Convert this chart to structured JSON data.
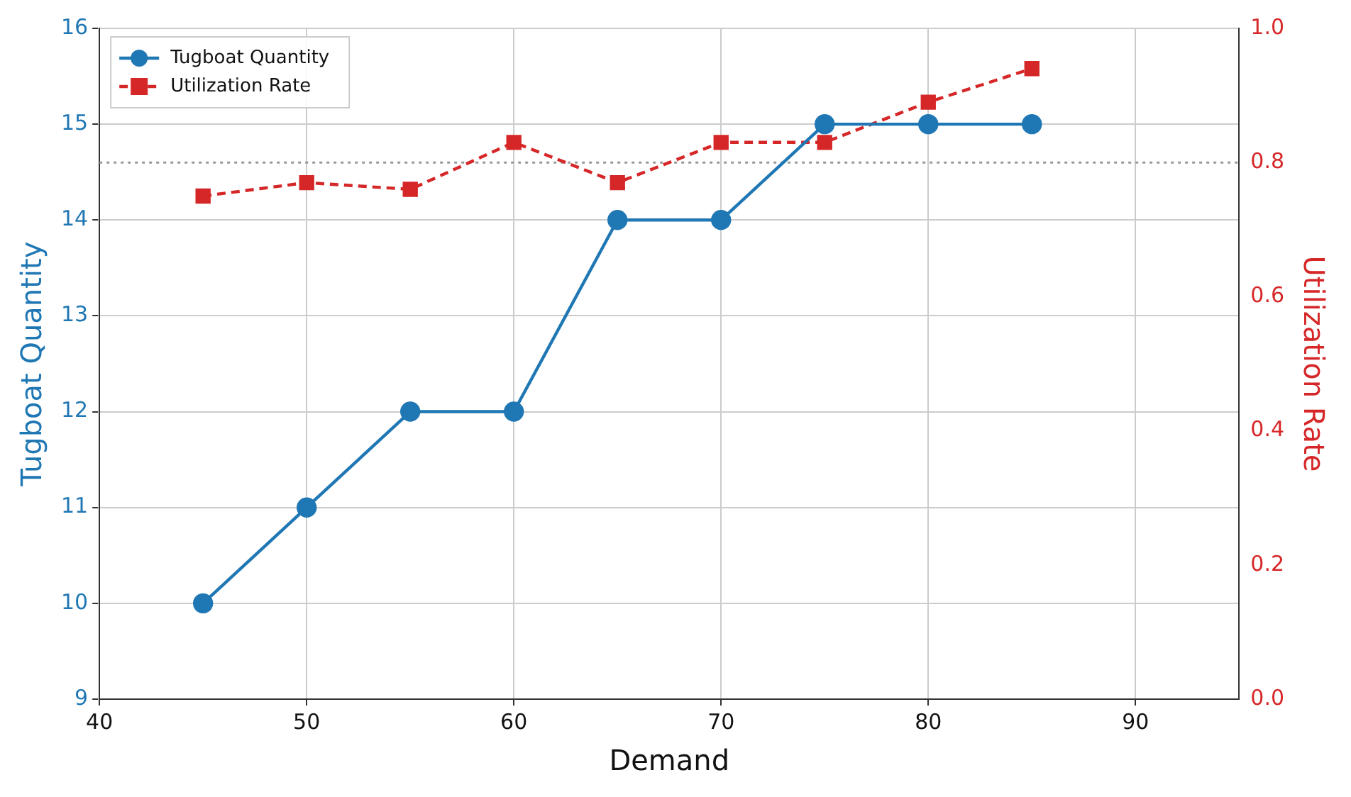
{
  "chart_data": {
    "type": "line",
    "xlabel": "Demand",
    "ylabel": "Tugboat Quantity",
    "y2label": "Utilization Rate",
    "x": [
      45,
      50,
      55,
      60,
      65,
      70,
      75,
      80,
      85
    ],
    "series": [
      {
        "name": "Tugboat Quantity",
        "color": "#1f77b4",
        "values": [
          10,
          11,
          12,
          12,
          14,
          14,
          15,
          15,
          15
        ],
        "marker": "circle",
        "line_style": "solid"
      },
      {
        "name": "Utilization Rate",
        "color": "#d62728",
        "values": [
          0.75,
          0.77,
          0.76,
          0.83,
          0.77,
          0.83,
          0.83,
          0.89,
          0.94
        ],
        "axis": "y2",
        "marker": "square",
        "line_style": "dashed"
      }
    ],
    "xlim": [
      40,
      95
    ],
    "xticks": [
      40,
      50,
      60,
      70,
      80,
      90
    ],
    "ylim": [
      9,
      16
    ],
    "yticks": [
      9,
      10,
      11,
      12,
      13,
      14,
      15,
      16
    ],
    "y2lim": [
      0,
      1
    ],
    "y2ticks": [
      {
        "value": 0,
        "label": "0.0"
      },
      {
        "value": 0.2,
        "label": "0.2"
      },
      {
        "value": 0.4,
        "label": "0.4"
      },
      {
        "value": 0.6,
        "label": "0.6"
      },
      {
        "value": 0.8,
        "label": "0.8"
      },
      {
        "value": 1,
        "label": "1.0"
      }
    ],
    "ref_lines": [
      {
        "axis": "y2",
        "value": 0.8,
        "color": "#999999",
        "line_style": "dotted"
      }
    ],
    "grid": true,
    "legend": "top left"
  }
}
